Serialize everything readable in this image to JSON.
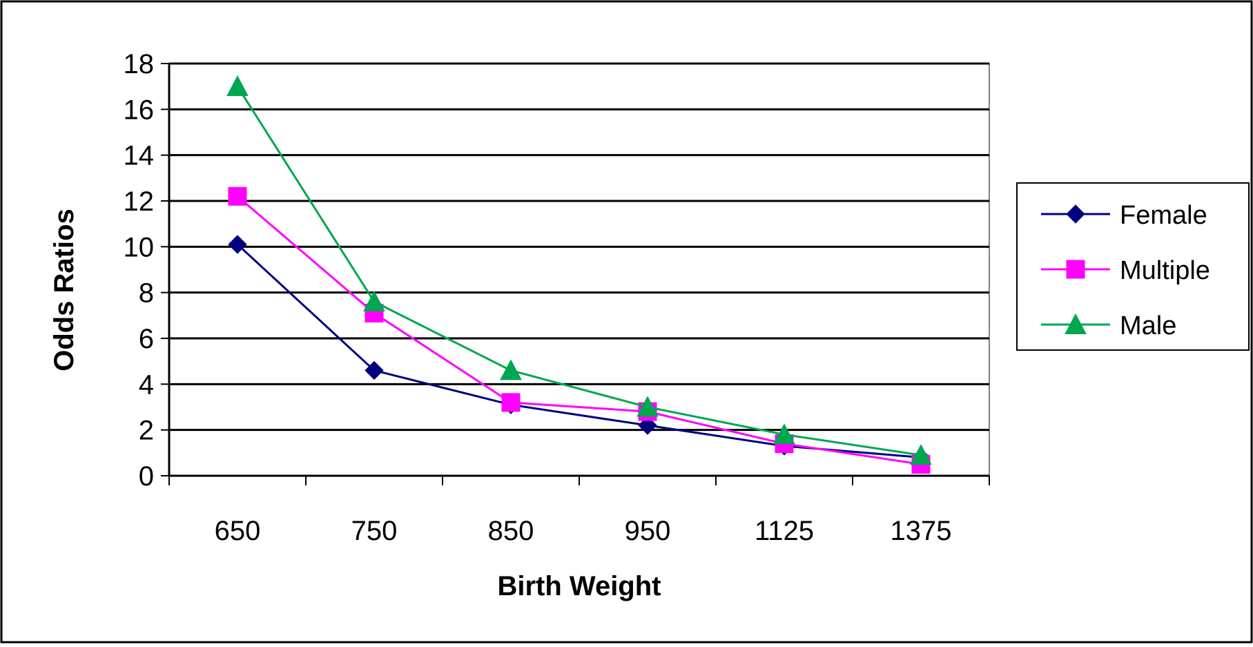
{
  "chart_data": {
    "type": "line",
    "title": "",
    "xlabel": "Birth Weight",
    "ylabel": "Odds Ratios",
    "categories": [
      "650",
      "750",
      "850",
      "950",
      "1125",
      "1375"
    ],
    "ylim": [
      0,
      18
    ],
    "yticks": [
      0,
      2,
      4,
      6,
      8,
      10,
      12,
      14,
      16,
      18
    ],
    "grid": true,
    "legend_position": "right",
    "series": [
      {
        "name": "Female",
        "color": "#000080",
        "marker": "diamond",
        "values": [
          10.1,
          4.6,
          3.1,
          2.2,
          1.3,
          0.8
        ]
      },
      {
        "name": "Multiple",
        "color": "#FF00FF",
        "marker": "square",
        "values": [
          12.2,
          7.1,
          3.2,
          2.8,
          1.4,
          0.5
        ]
      },
      {
        "name": "Male",
        "color": "#00A650",
        "marker": "triangle",
        "values": [
          17.0,
          7.6,
          4.6,
          3.0,
          1.8,
          0.9
        ]
      }
    ]
  }
}
